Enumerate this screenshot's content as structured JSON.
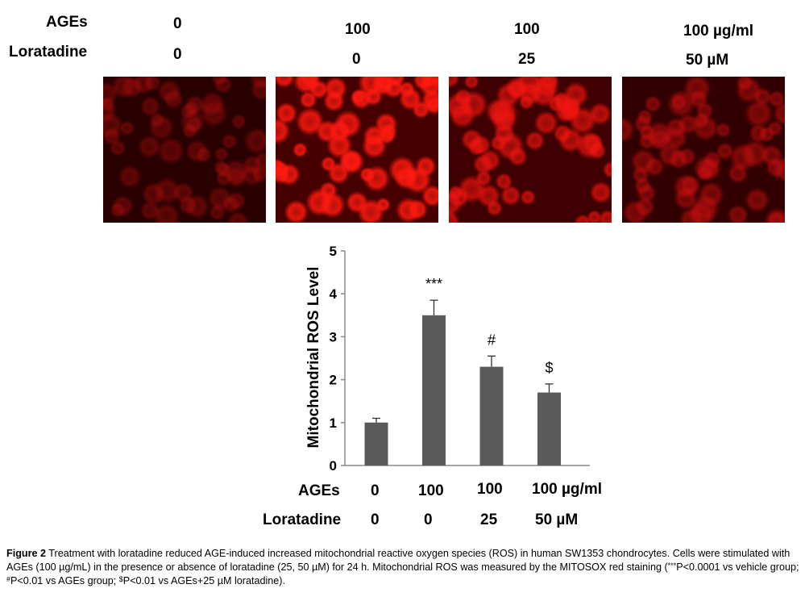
{
  "header": {
    "ages_label": "AGEs",
    "loratadine_label": "Loratadine",
    "ages_values": [
      "0",
      "100",
      "100",
      "100"
    ],
    "ages_unit": "µg/ml",
    "loratadine_values": [
      "0",
      "0",
      "25",
      "50"
    ],
    "loratadine_unit": "µM"
  },
  "panels": [
    {
      "group": "control",
      "brightness": 0.35,
      "color": "#c81010"
    },
    {
      "group": "AGEs",
      "brightness": 0.85,
      "color": "#ff1a10"
    },
    {
      "group": "AGEs+Loratadine 25",
      "brightness": 0.7,
      "color": "#f01510"
    },
    {
      "group": "AGEs+Loratadine 50",
      "brightness": 0.5,
      "color": "#d01010"
    }
  ],
  "chart_data": {
    "type": "bar",
    "categories": [
      "0/0",
      "100/0",
      "100/25",
      "100/50"
    ],
    "values": [
      1.0,
      3.5,
      2.3,
      1.7
    ],
    "errors": [
      0.1,
      0.35,
      0.25,
      0.2
    ],
    "annotations": [
      "",
      "***",
      "#",
      "$"
    ],
    "ylabel": "Mitochondrial ROS Level",
    "ylim": [
      0,
      5
    ],
    "yticks": [
      "0",
      "1",
      "2",
      "3",
      "4",
      "5"
    ],
    "bar_color": "#5a5a5a",
    "grid": false,
    "x_rows": {
      "ages_label": "AGEs",
      "ages_values": [
        "0",
        "100",
        "100",
        "100"
      ],
      "ages_unit": "µg/ml",
      "loratadine_label": "Loratadine",
      "loratadine_values": [
        "0",
        "0",
        "25",
        "50"
      ],
      "loratadine_unit": "µM"
    }
  },
  "caption": {
    "figure_label": "Figure 2",
    "text_1": " Treatment with loratadine reduced AGE-induced increased mitochondrial reactive oxygen species (ROS) in human SW1353 chondrocytes. Cells were stimulated with AGEs (100 µg/mL) in the presence or absence of loratadine (25, 50 µM) for 24 h. Mitochondrial ROS was measured by the MITOSOX red staining (",
    "sup_1": "***",
    "text_2": "P<0.0001 vs vehicle group; ",
    "sup_2": "#",
    "text_3": "P<0.01 vs AGEs group; ",
    "sup_3": "$",
    "text_4": "P<0.01 vs AGEs+25 µM loratadine)."
  }
}
